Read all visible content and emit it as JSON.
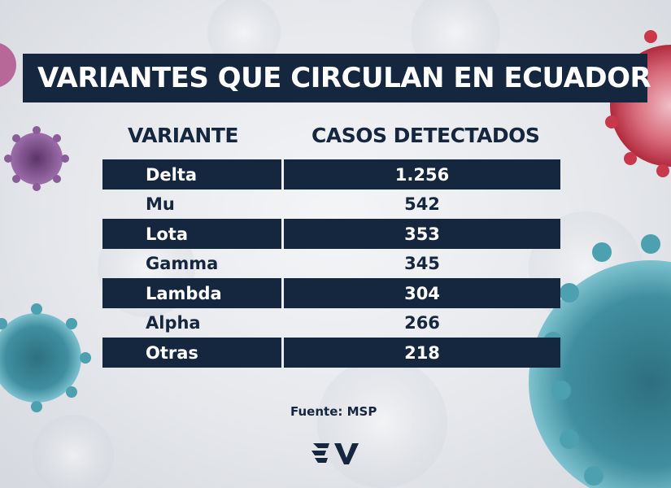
{
  "title": "VARIANTES QUE CIRCULAN EN ECUADOR",
  "colors": {
    "navy": "#15263f",
    "virus_teal": "#3f8fa0",
    "virus_red": "#c8384a",
    "virus_purple": "#7a4c86"
  },
  "chart_data": {
    "type": "table",
    "title": "VARIANTES QUE CIRCULAN EN ECUADOR",
    "columns": [
      "VARIANTE",
      "CASOS DETECTADOS"
    ],
    "rows": [
      {
        "variant": "Delta",
        "cases": "1.256"
      },
      {
        "variant": "Mu",
        "cases": "542"
      },
      {
        "variant": "Lota",
        "cases": "353"
      },
      {
        "variant": "Gamma",
        "cases": "345"
      },
      {
        "variant": "Lambda",
        "cases": "304"
      },
      {
        "variant": "Alpha",
        "cases": "266"
      },
      {
        "variant": "Otras",
        "cases": "218"
      }
    ]
  },
  "source": "Fuente: MSP",
  "logo_icon": "ecuavisa-logo-icon"
}
